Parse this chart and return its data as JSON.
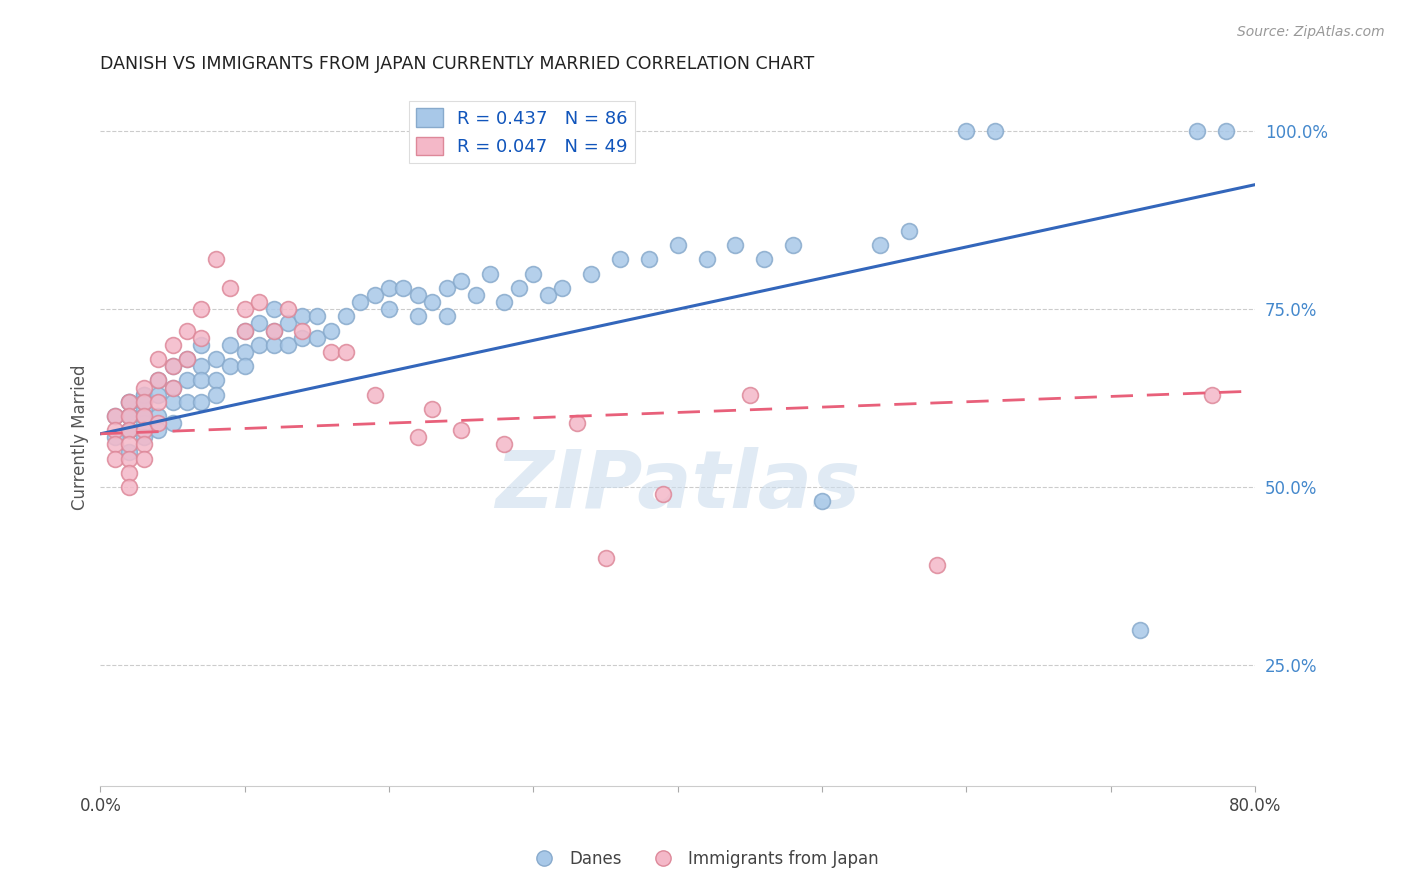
{
  "title": "DANISH VS IMMIGRANTS FROM JAPAN CURRENTLY MARRIED CORRELATION CHART",
  "source": "Source: ZipAtlas.com",
  "ylabel": "Currently Married",
  "xlim": [
    0.0,
    0.8
  ],
  "ylim": [
    0.08,
    1.06
  ],
  "x_ticks": [
    0.0,
    0.1,
    0.2,
    0.3,
    0.4,
    0.5,
    0.6,
    0.7,
    0.8
  ],
  "x_tick_labels": [
    "0.0%",
    "",
    "",
    "",
    "",
    "",
    "",
    "",
    "80.0%"
  ],
  "y_ticks_right": [
    0.25,
    0.5,
    0.75,
    1.0
  ],
  "y_tick_labels_right": [
    "25.0%",
    "50.0%",
    "75.0%",
    "100.0%"
  ],
  "legend_blue_label": "R = 0.437   N = 86",
  "legend_pink_label": "R = 0.047   N = 49",
  "legend_danes": "Danes",
  "legend_japan": "Immigrants from Japan",
  "blue_color": "#a8c8e8",
  "pink_color": "#f4b8c8",
  "blue_line_color": "#3366bb",
  "pink_line_color": "#e8607a",
  "watermark": "ZIPatlas",
  "blue_line_x0": 0.0,
  "blue_line_y0": 0.575,
  "blue_line_x1": 0.8,
  "blue_line_y1": 0.925,
  "pink_line_x0": 0.0,
  "pink_line_y0": 0.575,
  "pink_line_x1": 0.8,
  "pink_line_y1": 0.635,
  "blue_x": [
    0.01,
    0.01,
    0.02,
    0.02,
    0.02,
    0.02,
    0.02,
    0.02,
    0.02,
    0.03,
    0.03,
    0.03,
    0.03,
    0.03,
    0.03,
    0.03,
    0.04,
    0.04,
    0.04,
    0.04,
    0.05,
    0.05,
    0.05,
    0.05,
    0.06,
    0.06,
    0.06,
    0.07,
    0.07,
    0.07,
    0.07,
    0.08,
    0.08,
    0.08,
    0.09,
    0.09,
    0.1,
    0.1,
    0.1,
    0.11,
    0.11,
    0.12,
    0.12,
    0.12,
    0.13,
    0.13,
    0.14,
    0.14,
    0.15,
    0.15,
    0.16,
    0.17,
    0.18,
    0.19,
    0.2,
    0.2,
    0.21,
    0.22,
    0.22,
    0.23,
    0.24,
    0.24,
    0.25,
    0.26,
    0.27,
    0.28,
    0.29,
    0.3,
    0.31,
    0.32,
    0.34,
    0.36,
    0.38,
    0.4,
    0.42,
    0.44,
    0.46,
    0.48,
    0.5,
    0.54,
    0.56,
    0.6,
    0.62,
    0.72,
    0.76,
    0.78
  ],
  "blue_y": [
    0.6,
    0.57,
    0.62,
    0.6,
    0.58,
    0.62,
    0.58,
    0.55,
    0.6,
    0.63,
    0.61,
    0.59,
    0.63,
    0.6,
    0.57,
    0.62,
    0.65,
    0.63,
    0.6,
    0.58,
    0.67,
    0.64,
    0.62,
    0.59,
    0.68,
    0.65,
    0.62,
    0.7,
    0.67,
    0.65,
    0.62,
    0.68,
    0.65,
    0.63,
    0.7,
    0.67,
    0.72,
    0.69,
    0.67,
    0.73,
    0.7,
    0.75,
    0.72,
    0.7,
    0.73,
    0.7,
    0.74,
    0.71,
    0.74,
    0.71,
    0.72,
    0.74,
    0.76,
    0.77,
    0.78,
    0.75,
    0.78,
    0.77,
    0.74,
    0.76,
    0.78,
    0.74,
    0.79,
    0.77,
    0.8,
    0.76,
    0.78,
    0.8,
    0.77,
    0.78,
    0.8,
    0.82,
    0.82,
    0.84,
    0.82,
    0.84,
    0.82,
    0.84,
    0.48,
    0.84,
    0.86,
    1.0,
    1.0,
    0.3,
    1.0,
    1.0
  ],
  "pink_x": [
    0.01,
    0.01,
    0.01,
    0.01,
    0.02,
    0.02,
    0.02,
    0.02,
    0.02,
    0.02,
    0.02,
    0.03,
    0.03,
    0.03,
    0.03,
    0.03,
    0.03,
    0.04,
    0.04,
    0.04,
    0.04,
    0.05,
    0.05,
    0.05,
    0.06,
    0.06,
    0.07,
    0.07,
    0.08,
    0.09,
    0.1,
    0.1,
    0.11,
    0.12,
    0.13,
    0.14,
    0.16,
    0.17,
    0.19,
    0.22,
    0.23,
    0.25,
    0.28,
    0.33,
    0.35,
    0.39,
    0.45,
    0.58,
    0.77
  ],
  "pink_y": [
    0.6,
    0.58,
    0.56,
    0.54,
    0.62,
    0.6,
    0.58,
    0.56,
    0.54,
    0.52,
    0.5,
    0.64,
    0.62,
    0.6,
    0.58,
    0.56,
    0.54,
    0.68,
    0.65,
    0.62,
    0.59,
    0.7,
    0.67,
    0.64,
    0.72,
    0.68,
    0.75,
    0.71,
    0.82,
    0.78,
    0.75,
    0.72,
    0.76,
    0.72,
    0.75,
    0.72,
    0.69,
    0.69,
    0.63,
    0.57,
    0.61,
    0.58,
    0.56,
    0.59,
    0.4,
    0.49,
    0.63,
    0.39,
    0.63
  ]
}
